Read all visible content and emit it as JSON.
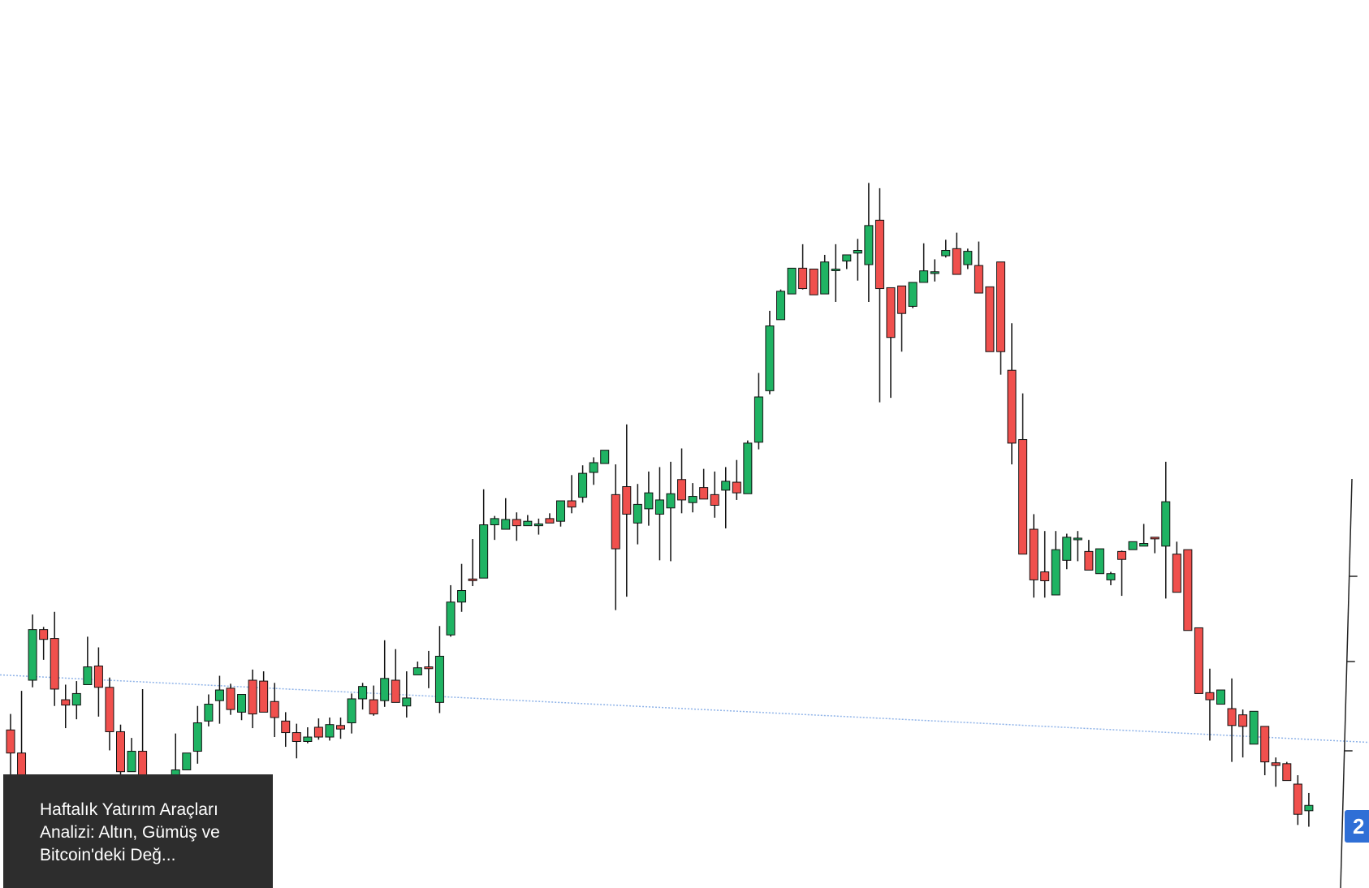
{
  "caption": {
    "text": "Haftalık Yatırım Araçları Analizi: Altın, Gümüş ve Bitcoin'deki Değ..."
  },
  "price_tag": {
    "text": "2"
  },
  "colors": {
    "up": "#1fb363",
    "down": "#f0504d",
    "wick": "#111111",
    "trendline": "#8fb3e8",
    "axis": "#222222",
    "caption_bg": "#2d2d2d",
    "price_tag_bg": "#2f6fd6"
  },
  "chart_data": {
    "type": "candlestick",
    "title": "",
    "xlabel": "",
    "ylabel": "",
    "ylim": [
      0,
      1000
    ],
    "grid": false,
    "trendline": {
      "start": [
        0,
        240
      ],
      "end": [
        117,
        168
      ]
    },
    "candles": [
      [
        178,
        152,
        196,
        123
      ],
      [
        152,
        116,
        222,
        101
      ],
      [
        234,
        291,
        308,
        226
      ],
      [
        291,
        280,
        294,
        257
      ],
      [
        281,
        224,
        311,
        205
      ],
      [
        212,
        206,
        229,
        180
      ],
      [
        206,
        219,
        233,
        190
      ],
      [
        229,
        249,
        283,
        232
      ],
      [
        250,
        226,
        271,
        193
      ],
      [
        226,
        176,
        237,
        155
      ],
      [
        176,
        131,
        184,
        120
      ],
      [
        131,
        154,
        169,
        134
      ],
      [
        154,
        107,
        224,
        82
      ],
      [
        107,
        45,
        123,
        20
      ],
      [
        73,
        45,
        106,
        39
      ],
      [
        108,
        133,
        174,
        70
      ],
      [
        133,
        152,
        151,
        143
      ],
      [
        154,
        186,
        205,
        140
      ],
      [
        188,
        207,
        218,
        182
      ],
      [
        211,
        223,
        239,
        185
      ],
      [
        225,
        201,
        230,
        195
      ],
      [
        198,
        218,
        215,
        189
      ],
      [
        234,
        196,
        246,
        180
      ],
      [
        233,
        198,
        244,
        218
      ],
      [
        210,
        192,
        231,
        170
      ],
      [
        188,
        175,
        198,
        159
      ],
      [
        175,
        165,
        185,
        146
      ],
      [
        165,
        170,
        181,
        163
      ],
      [
        181,
        170,
        191,
        167
      ],
      [
        170,
        184,
        192,
        166
      ],
      [
        183,
        179,
        192,
        168
      ],
      [
        186,
        213,
        219,
        174
      ],
      [
        213,
        227,
        231,
        201
      ],
      [
        212,
        196,
        228,
        194
      ],
      [
        211,
        236,
        279,
        204
      ],
      [
        234,
        209,
        269,
        212
      ],
      [
        205,
        214,
        244,
        192
      ],
      [
        240,
        248,
        255,
        241
      ],
      [
        249,
        247,
        267,
        225
      ],
      [
        209,
        261,
        295,
        197
      ],
      [
        285,
        322,
        341,
        283
      ],
      [
        322,
        335,
        365,
        311
      ],
      [
        348,
        347,
        393,
        340
      ],
      [
        349,
        409,
        449,
        353
      ],
      [
        409,
        416,
        419,
        392
      ],
      [
        404,
        415,
        439,
        406
      ],
      [
        415,
        408,
        423,
        391
      ],
      [
        408,
        413,
        420,
        409
      ],
      [
        408,
        410,
        416,
        398
      ],
      [
        416,
        411,
        422,
        417
      ],
      [
        413,
        436,
        425,
        407
      ],
      [
        436,
        429,
        465,
        422
      ],
      [
        440,
        467,
        476,
        434
      ],
      [
        468,
        479,
        485,
        454
      ],
      [
        478,
        493,
        484,
        489
      ],
      [
        443,
        382,
        477,
        313
      ],
      [
        452,
        421,
        522,
        328
      ],
      [
        411,
        432,
        455,
        387
      ],
      [
        427,
        445,
        469,
        408
      ],
      [
        421,
        437,
        474,
        369
      ],
      [
        428,
        444,
        480,
        368
      ],
      [
        460,
        437,
        495,
        422
      ],
      [
        434,
        441,
        456,
        423
      ],
      [
        451,
        438,
        472,
        448
      ],
      [
        443,
        431,
        469,
        417
      ],
      [
        448,
        458,
        474,
        405
      ],
      [
        457,
        445,
        482,
        437
      ],
      [
        444,
        501,
        504,
        445
      ],
      [
        502,
        553,
        580,
        494
      ],
      [
        560,
        633,
        650,
        556
      ],
      [
        640,
        672,
        674,
        648
      ],
      [
        669,
        698,
        696,
        688
      ],
      [
        698,
        675,
        725,
        674
      ],
      [
        697,
        668,
        679,
        696
      ],
      [
        669,
        705,
        713,
        705
      ],
      [
        696,
        697,
        725,
        660
      ],
      [
        706,
        713,
        711,
        697
      ],
      [
        715,
        718,
        731,
        684
      ],
      [
        702,
        746,
        794,
        660
      ],
      [
        752,
        675,
        788,
        547
      ],
      [
        676,
        620,
        670,
        552
      ],
      [
        678,
        647,
        669,
        604
      ],
      [
        655,
        682,
        679,
        653
      ],
      [
        682,
        695,
        726,
        683
      ],
      [
        692,
        694,
        708,
        683
      ],
      [
        712,
        718,
        730,
        710
      ],
      [
        720,
        691,
        738,
        691
      ],
      [
        702,
        717,
        720,
        697
      ],
      [
        701,
        670,
        728,
        684
      ],
      [
        677,
        604,
        647,
        650
      ],
      [
        705,
        604,
        673,
        578
      ],
      [
        583,
        501,
        636,
        477
      ],
      [
        505,
        376,
        557,
        405
      ],
      [
        404,
        347,
        421,
        327
      ],
      [
        356,
        346,
        402,
        327
      ],
      [
        330,
        381,
        402,
        382
      ],
      [
        369,
        395,
        399,
        359
      ],
      [
        394,
        394,
        402,
        368
      ],
      [
        379,
        358,
        392,
        369
      ],
      [
        354,
        382,
        376,
        357
      ],
      [
        347,
        354,
        356,
        341
      ],
      [
        379,
        370,
        380,
        329
      ],
      [
        381,
        390,
        388,
        387
      ],
      [
        385,
        388,
        410,
        386
      ],
      [
        395,
        394,
        392,
        377
      ],
      [
        385,
        435,
        480,
        326
      ],
      [
        376,
        333,
        390,
        352
      ],
      [
        381,
        290,
        354,
        294
      ],
      [
        293,
        219,
        293,
        240
      ],
      [
        220,
        212,
        247,
        166
      ],
      [
        207,
        223,
        215,
        226
      ],
      [
        202,
        183,
        236,
        142
      ],
      [
        195,
        182,
        201,
        147
      ],
      [
        162,
        199,
        183,
        165
      ],
      [
        182,
        142,
        174,
        127
      ],
      [
        141,
        138,
        147,
        114
      ],
      [
        140,
        121,
        142,
        127
      ],
      [
        117,
        83,
        127,
        71
      ],
      [
        87,
        93,
        107,
        69
      ]
    ]
  }
}
